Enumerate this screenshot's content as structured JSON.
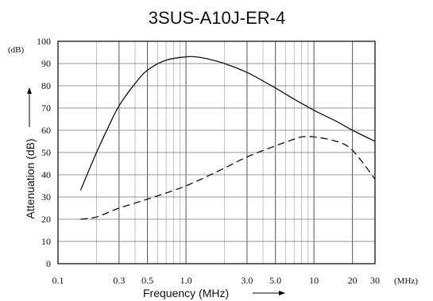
{
  "chart_data": {
    "type": "line",
    "title": "3SUS-A10J-ER-4",
    "xlabel": "Frequency (MHz)",
    "ylabel": "Attenuation (dB)",
    "x_unit": "(MHz)",
    "y_unit": "(dB)",
    "x_scale": "log",
    "xlim": [
      0.1,
      30
    ],
    "ylim": [
      0,
      100
    ],
    "grid": true,
    "x_tick_labels": [
      {
        "value": 0.1,
        "label": "0.1"
      },
      {
        "value": 0.3,
        "label": "0.3"
      },
      {
        "value": 0.5,
        "label": "0.5"
      },
      {
        "value": 1,
        "label": "1.0"
      },
      {
        "value": 3,
        "label": "3.0"
      },
      {
        "value": 5,
        "label": "5.0"
      },
      {
        "value": 10,
        "label": "10"
      },
      {
        "value": 20,
        "label": "20"
      },
      {
        "value": 30,
        "label": "30"
      }
    ],
    "y_ticks": [
      0,
      10,
      20,
      30,
      40,
      50,
      60,
      70,
      80,
      90,
      100
    ],
    "series": [
      {
        "style": "solid",
        "x": [
          0.15,
          0.2,
          0.25,
          0.3,
          0.4,
          0.5,
          0.7,
          1.0,
          1.2,
          1.5,
          2,
          3,
          5,
          7,
          10,
          15,
          20,
          30
        ],
        "y": [
          33,
          50,
          62,
          71,
          81,
          87,
          91.5,
          93,
          93,
          92,
          90,
          86,
          79,
          74,
          69,
          64,
          60,
          55
        ]
      },
      {
        "style": "dashed",
        "x": [
          0.15,
          0.2,
          0.3,
          0.5,
          1.0,
          2,
          3,
          5,
          7,
          8,
          10,
          15,
          20,
          30
        ],
        "y": [
          20,
          21,
          25,
          29,
          35,
          43,
          48,
          53,
          56,
          57,
          57,
          55,
          51,
          38
        ]
      }
    ]
  }
}
